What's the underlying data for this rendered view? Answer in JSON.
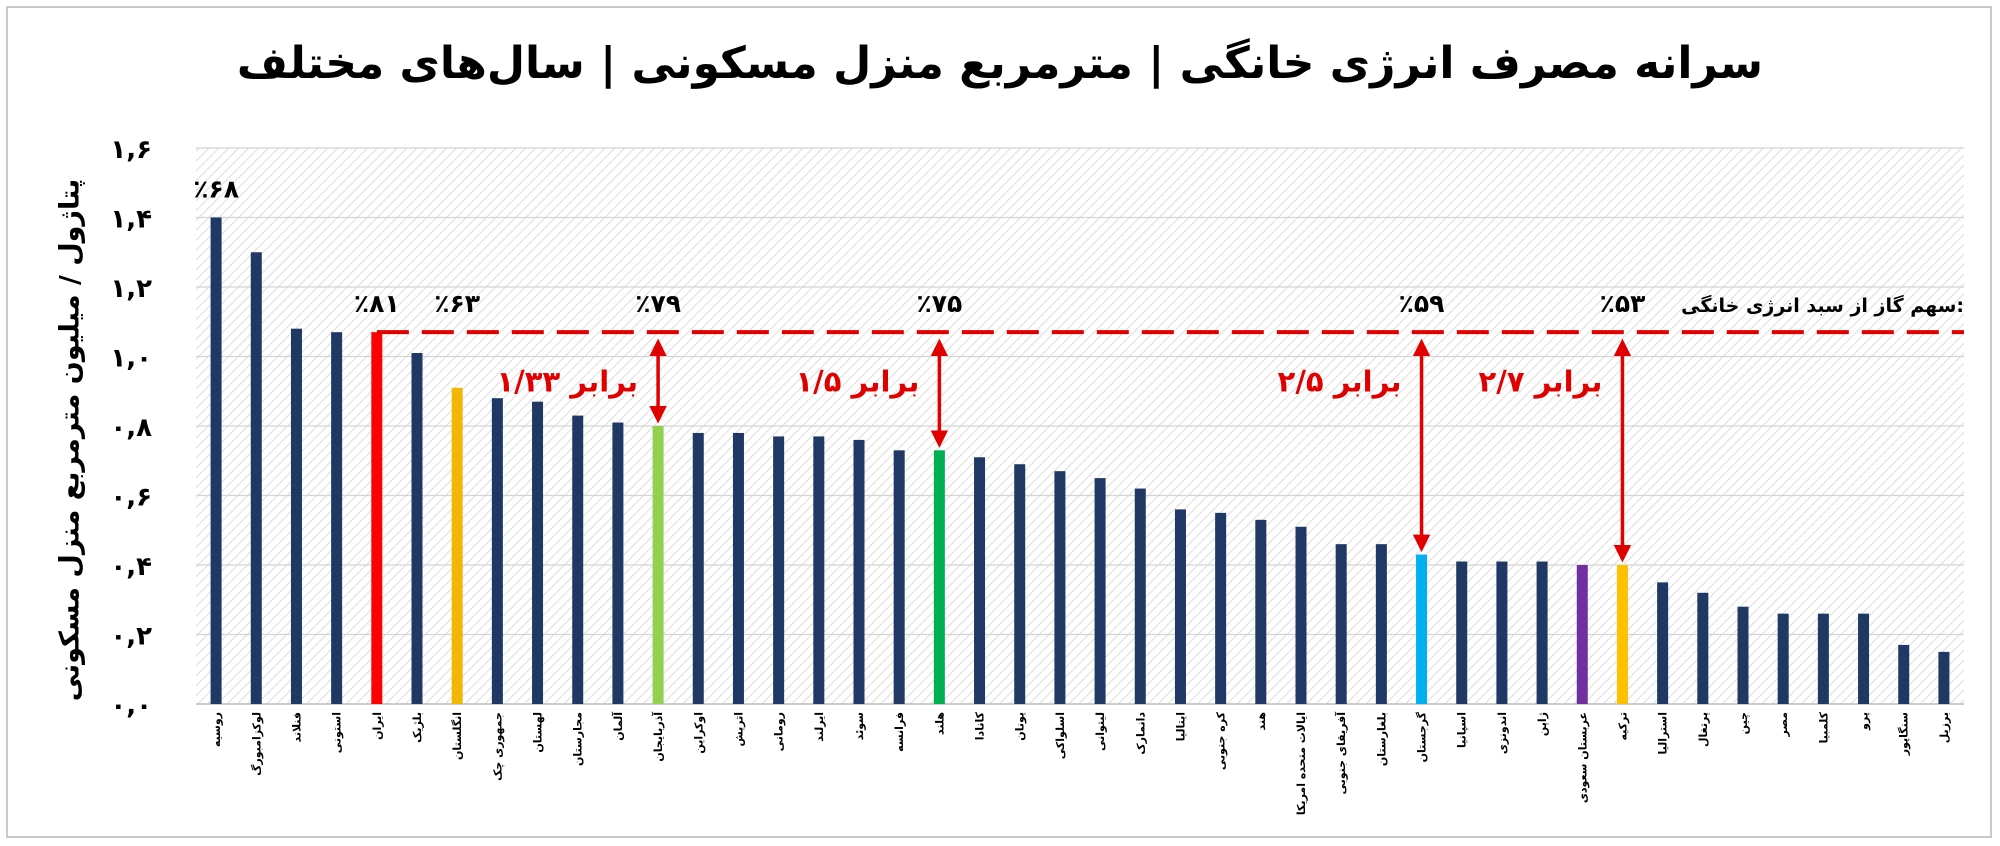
{
  "chart_data": {
    "type": "bar",
    "title": "سرانه مصرف انرژی خانگی | مترمربع منزل مسکونی | سال‌های مختلف",
    "xlabel": "",
    "ylabel": "پتاژول / میلیون مترمربع منزل مسکونی",
    "ylim": [
      0,
      1.6
    ],
    "yticks": [
      0,
      0.2,
      0.4,
      0.6,
      0.8,
      1.0,
      1.2,
      1.4,
      1.6
    ],
    "ytick_labels": [
      "۰,۰",
      "۰,۲",
      "۰,۴",
      "۰,۶",
      "۰,۸",
      "۱,۰",
      "۱,۲",
      "۱,۴",
      "۱,۶"
    ],
    "grid": true,
    "categories": [
      "روسیه",
      "لوکزامبورگ",
      "فنلاند",
      "استونی",
      "ایران",
      "بلژیک",
      "انگلستان",
      "جمهوری چک",
      "لهستان",
      "مجارستان",
      "آلمان",
      "آذربایجان",
      "اوکراین",
      "اتریش",
      "رومانی",
      "ایرلند",
      "سوئد",
      "فرانسه",
      "هلند",
      "کانادا",
      "یونان",
      "اسلواکی",
      "لیتوانی",
      "دانمارک",
      "ایتالیا",
      "کره جنوبی",
      "هند",
      "ایالات متحده امریکا",
      "آفریقای جنوبی",
      "بلغارستان",
      "گرجستان",
      "اسپانیا",
      "اندونزی",
      "ژاپن",
      "عربستان سعودی",
      "ترکیه",
      "استرالیا",
      "پرتغال",
      "چین",
      "مصر",
      "کلمبیا",
      "پرو",
      "سنگاپور",
      "برزیل"
    ],
    "values": [
      1.4,
      1.3,
      1.08,
      1.07,
      1.07,
      1.01,
      0.91,
      0.88,
      0.87,
      0.83,
      0.81,
      0.8,
      0.78,
      0.78,
      0.77,
      0.77,
      0.76,
      0.73,
      0.73,
      0.71,
      0.69,
      0.67,
      0.65,
      0.62,
      0.56,
      0.55,
      0.53,
      0.51,
      0.46,
      0.46,
      0.43,
      0.41,
      0.41,
      0.41,
      0.4,
      0.4,
      0.35,
      0.32,
      0.28,
      0.26,
      0.26,
      0.26,
      0.17,
      0.15
    ],
    "colors": {
      "default": "#1f3864",
      "ایران": "#ff0000",
      "انگلستان": "#f2b705",
      "آذربایجان": "#92d050",
      "هلند": "#00b050",
      "گرجستان": "#00b0f0",
      "عربستان سعودی": "#7030a0",
      "ترکیه": "#ffc000"
    },
    "reference_line": {
      "value": 1.07,
      "color": "#e00000",
      "label": "سهم گاز از سبد انرژی خانگی:"
    },
    "top_labels": [
      {
        "category": "روسیه",
        "text": "٪۶۸"
      },
      {
        "category": "ایران",
        "text": "٪۸۱"
      },
      {
        "category": "انگلستان",
        "text": "٪۶۳"
      },
      {
        "category": "آذربایجان",
        "text": "٪۷۹"
      },
      {
        "category": "هلند",
        "text": "٪۷۵"
      },
      {
        "category": "گرجستان",
        "text": "٪۵۹"
      },
      {
        "category": "ترکیه",
        "text": "٪۵۳"
      }
    ],
    "ratio_arrows": [
      {
        "category": "آذربایجان",
        "text": "۱/۳۳ برابر"
      },
      {
        "category": "هلند",
        "text": "۱/۵ برابر"
      },
      {
        "category": "گرجستان",
        "text": "۲/۵ برابر"
      },
      {
        "category": "ترکیه",
        "text": "۲/۷ برابر"
      }
    ]
  }
}
